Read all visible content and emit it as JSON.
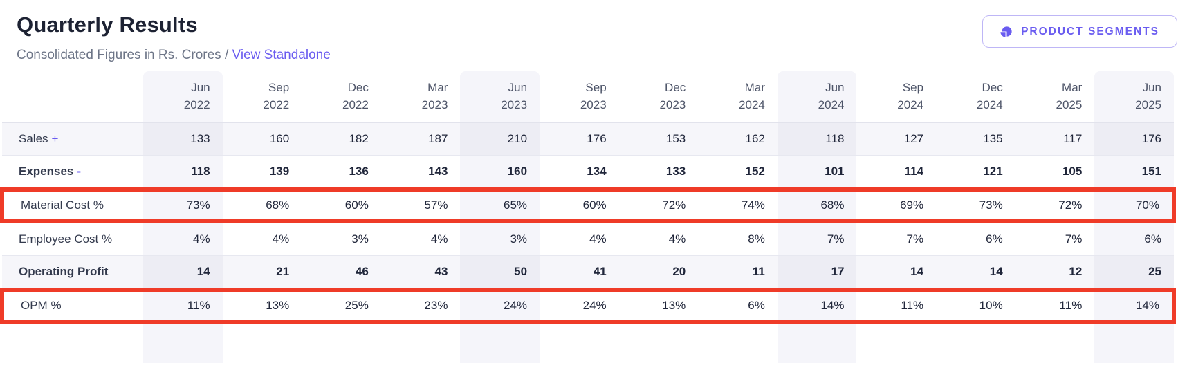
{
  "header": {
    "title": "Quarterly Results",
    "subtitle": "Consolidated Figures in Rs. Crores /",
    "standalone_link": "View Standalone",
    "segments_button_label": "PRODUCT SEGMENTS"
  },
  "colors": {
    "accent_purple": "#6a5cf0",
    "highlight_red": "#ef3b28",
    "column_shade": "#f5f5fa",
    "row_stripe": "#f6f6fa"
  },
  "table": {
    "columns": [
      {
        "month": "Jun",
        "year": "2022",
        "shaded": true
      },
      {
        "month": "Sep",
        "year": "2022",
        "shaded": false
      },
      {
        "month": "Dec",
        "year": "2022",
        "shaded": false
      },
      {
        "month": "Mar",
        "year": "2023",
        "shaded": false
      },
      {
        "month": "Jun",
        "year": "2023",
        "shaded": true
      },
      {
        "month": "Sep",
        "year": "2023",
        "shaded": false
      },
      {
        "month": "Dec",
        "year": "2023",
        "shaded": false
      },
      {
        "month": "Mar",
        "year": "2024",
        "shaded": false
      },
      {
        "month": "Jun",
        "year": "2024",
        "shaded": true
      },
      {
        "month": "Sep",
        "year": "2024",
        "shaded": false
      },
      {
        "month": "Dec",
        "year": "2024",
        "shaded": false
      },
      {
        "month": "Mar",
        "year": "2025",
        "shaded": false
      },
      {
        "month": "Jun",
        "year": "2025",
        "shaded": true
      }
    ],
    "rows": [
      {
        "label": "Sales",
        "operator": "+",
        "bold": false,
        "striped": true,
        "highlighted": false,
        "values": [
          "133",
          "160",
          "182",
          "187",
          "210",
          "176",
          "153",
          "162",
          "118",
          "127",
          "135",
          "117",
          "176"
        ]
      },
      {
        "label": "Expenses",
        "operator": "-",
        "bold": true,
        "striped": false,
        "highlighted": false,
        "values": [
          "118",
          "139",
          "136",
          "143",
          "160",
          "134",
          "133",
          "152",
          "101",
          "114",
          "121",
          "105",
          "151"
        ]
      },
      {
        "label": "Material Cost %",
        "operator": null,
        "bold": false,
        "striped": false,
        "highlighted": true,
        "values": [
          "73%",
          "68%",
          "60%",
          "57%",
          "65%",
          "60%",
          "72%",
          "74%",
          "68%",
          "69%",
          "73%",
          "72%",
          "70%"
        ]
      },
      {
        "label": "Employee Cost %",
        "operator": null,
        "bold": false,
        "striped": false,
        "highlighted": false,
        "values": [
          "4%",
          "4%",
          "3%",
          "4%",
          "3%",
          "4%",
          "4%",
          "8%",
          "7%",
          "7%",
          "6%",
          "7%",
          "6%"
        ]
      },
      {
        "label": "Operating Profit",
        "operator": null,
        "bold": true,
        "striped": true,
        "highlighted": false,
        "values": [
          "14",
          "21",
          "46",
          "43",
          "50",
          "41",
          "20",
          "11",
          "17",
          "14",
          "14",
          "12",
          "25"
        ]
      },
      {
        "label": "OPM %",
        "operator": null,
        "bold": false,
        "striped": false,
        "highlighted": true,
        "values": [
          "11%",
          "13%",
          "25%",
          "23%",
          "24%",
          "24%",
          "13%",
          "6%",
          "14%",
          "11%",
          "10%",
          "11%",
          "14%"
        ]
      }
    ]
  }
}
